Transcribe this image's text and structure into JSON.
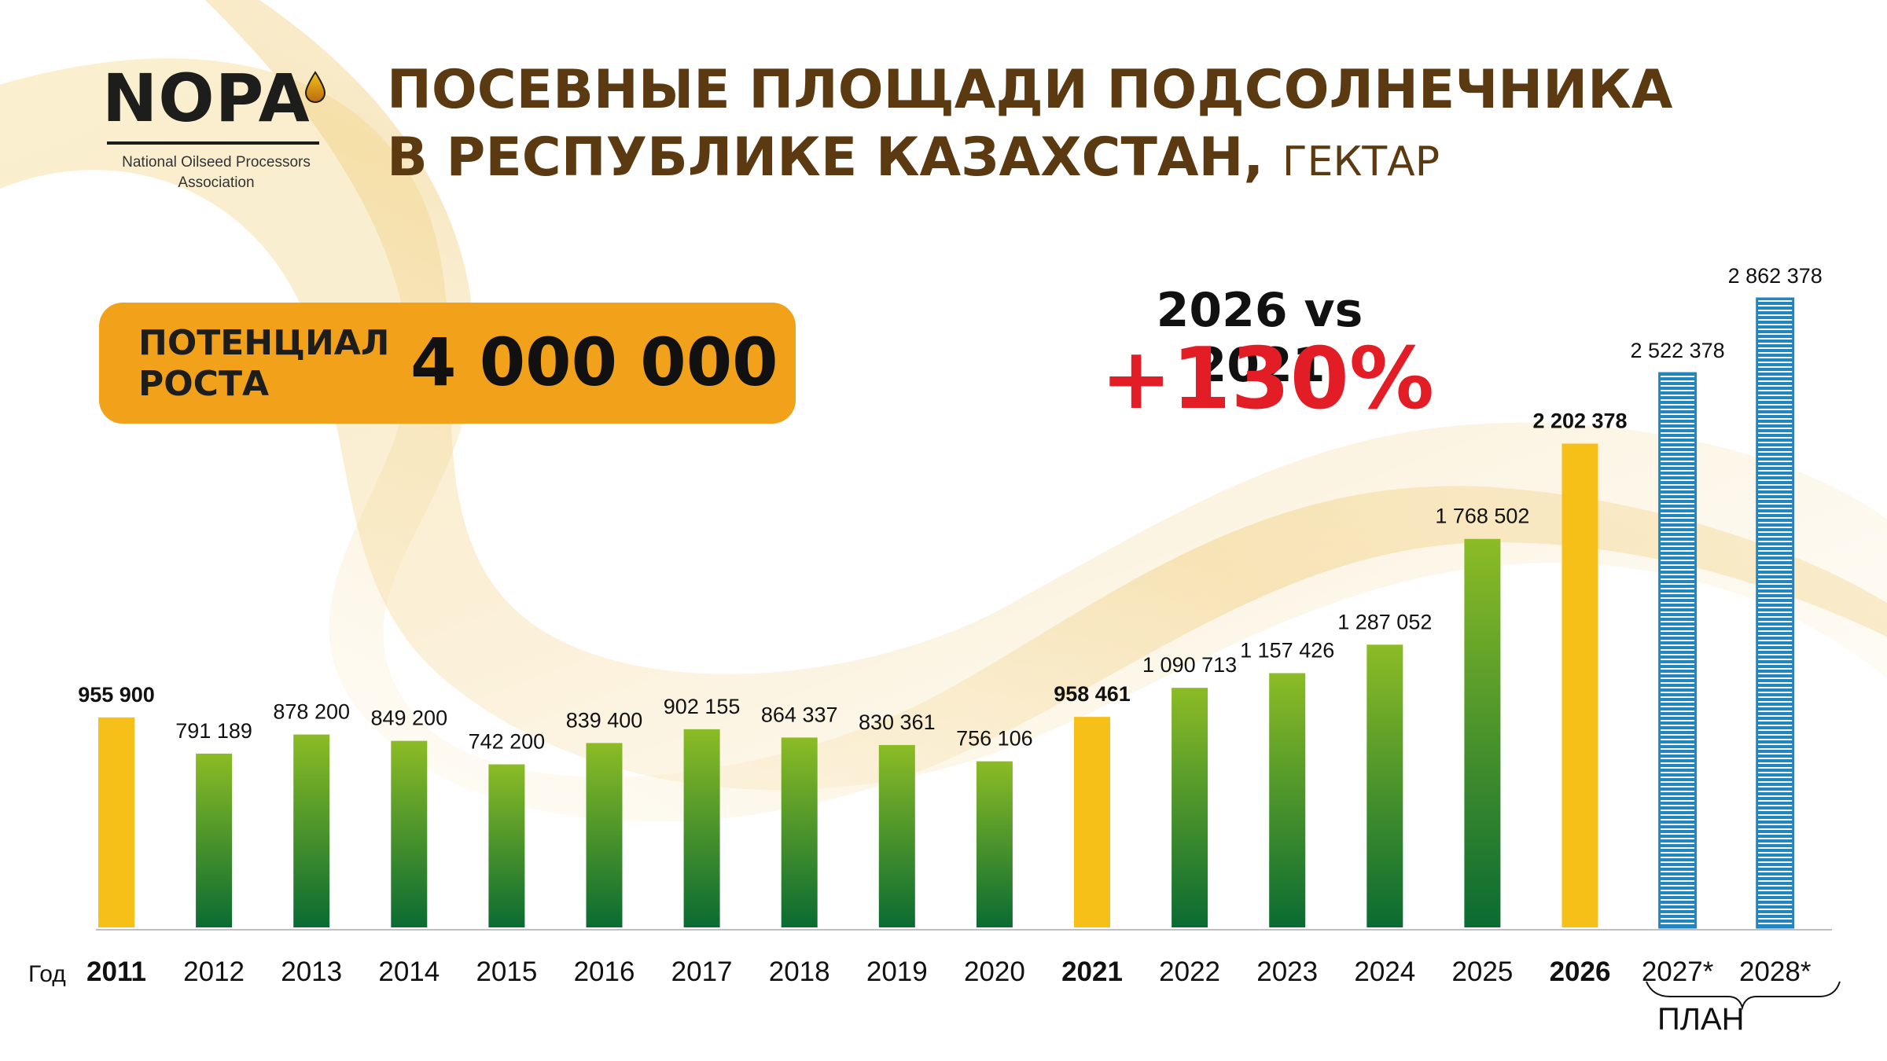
{
  "logo": {
    "word": "NOPA",
    "subtitle_line1": "National Oilseed Processors",
    "subtitle_line2": "Association"
  },
  "title": {
    "line1": "ПОСЕВНЫЕ ПЛОЩАДИ ПОДСОЛНЕЧНИКА",
    "line2": "В РЕСПУБЛИКЕ КАЗАХСТАН,",
    "unit": "ГЕКТАР"
  },
  "potential": {
    "label_line1": "ПОТЕНЦИАЛ",
    "label_line2": "РОСТА",
    "value": "4 000 000"
  },
  "comparison": {
    "heading": "2026 vs 2021",
    "value": "+130%"
  },
  "plan_label": "ПЛАН",
  "colors": {
    "highlight_bar": "#f6c018",
    "green_top": "#8cbc25",
    "green_bottom": "#0a6b32",
    "plan_bar": "#1f86c2",
    "accent_red": "#e31d25",
    "potential_bg": "#f2a21a",
    "title_brown": "#5b3a12"
  },
  "chart_data": {
    "type": "bar",
    "xlabel": "Год",
    "categories": [
      "2011",
      "2012",
      "2013",
      "2014",
      "2015",
      "2016",
      "2017",
      "2018",
      "2019",
      "2020",
      "2021",
      "2022",
      "2023",
      "2024",
      "2025",
      "2026",
      "2027*",
      "2028*"
    ],
    "values": [
      955900,
      791189,
      878200,
      849200,
      742200,
      839400,
      902155,
      864337,
      830361,
      756106,
      958461,
      1090713,
      1157426,
      1287052,
      1768502,
      2202378,
      2522378,
      2862378
    ],
    "value_labels": [
      "955 900",
      "791 189",
      "878 200",
      "849 200",
      "742 200",
      "839 400",
      "902 155",
      "864 337",
      "830 361",
      "756 106",
      "958 461",
      "1 090 713",
      "1 157 426",
      "1 287 052",
      "1 768 502",
      "2 202 378",
      "2 522 378",
      "2 862 378"
    ],
    "highlighted": [
      "2011",
      "2021",
      "2026"
    ],
    "plan": [
      "2027*",
      "2028*"
    ],
    "ylim": [
      0,
      2862378
    ],
    "grid": false
  }
}
